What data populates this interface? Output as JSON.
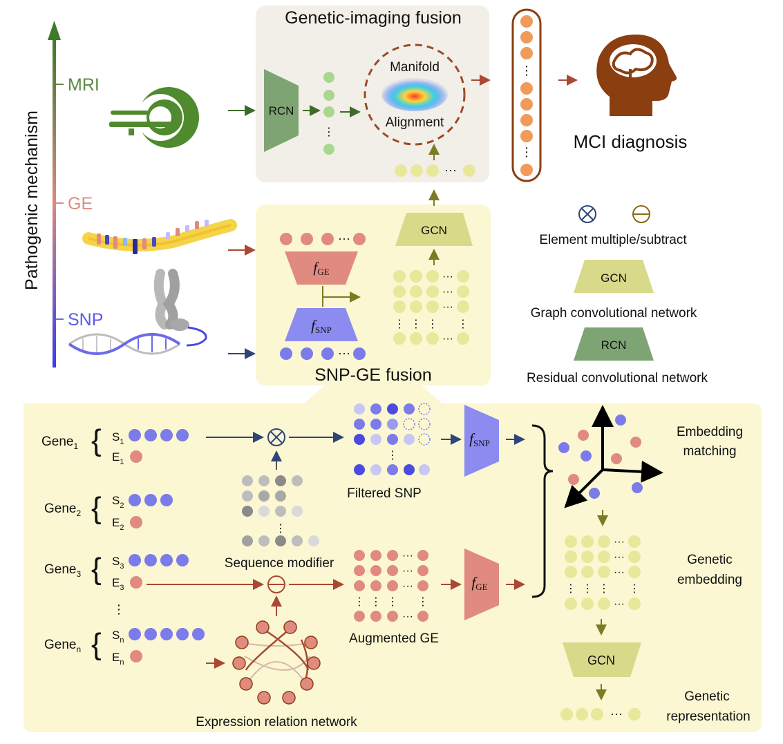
{
  "axis": {
    "title": "Pathogenic mechanism",
    "levels": [
      "MRI",
      "GE",
      "SNP"
    ]
  },
  "fusion": {
    "top_title": "Genetic-imaging fusion",
    "mid_title": "SNP-GE fusion",
    "manifold": "Manifold",
    "alignment": "Alignment"
  },
  "blocks": {
    "rcn": "RCN",
    "gcn": "GCN",
    "f": "f",
    "sub_ge": "GE",
    "sub_snp": "SNP"
  },
  "diagnosis": "MCI diagnosis",
  "legend": {
    "ops": "Element multiple/subtract",
    "gcn_label": "GCN",
    "gcn_desc": "Graph convolutional network",
    "rcn_label": "RCN",
    "rcn_desc": "Residual convolutional network"
  },
  "genes": [
    {
      "name": "Gene",
      "sub": "1",
      "s": "S",
      "e": "E"
    },
    {
      "name": "Gene",
      "sub": "2",
      "s": "S",
      "e": "E"
    },
    {
      "name": "Gene",
      "sub": "3",
      "s": "S",
      "e": "E"
    },
    {
      "name": "Gene",
      "sub": "n",
      "s": "S",
      "e": "E"
    }
  ],
  "labels": {
    "filtered_snp": "Filtered SNP",
    "sequence_modifier": "Sequence modifier",
    "augmented_ge": "Augmented GE",
    "expression_network": "Expression relation network",
    "embedding_matching_1": "Embedding",
    "embedding_matching_2": "matching",
    "genetic_embedding_1": "Genetic",
    "genetic_embedding_2": "embedding",
    "genetic_representation_1": "Genetic",
    "genetic_representation_2": "representation"
  },
  "colors": {
    "mri_green": "#4f7f3a",
    "ge_pink": "#e08a80",
    "snp_blue": "#7b7bea",
    "gcn_yellow": "#d9d98a",
    "rcn_green": "#7ea474",
    "brain_brown": "#8b3e10",
    "arrow_olive": "#7d7a22",
    "arrow_red": "#a94834",
    "arrow_navy": "#2f4577"
  }
}
